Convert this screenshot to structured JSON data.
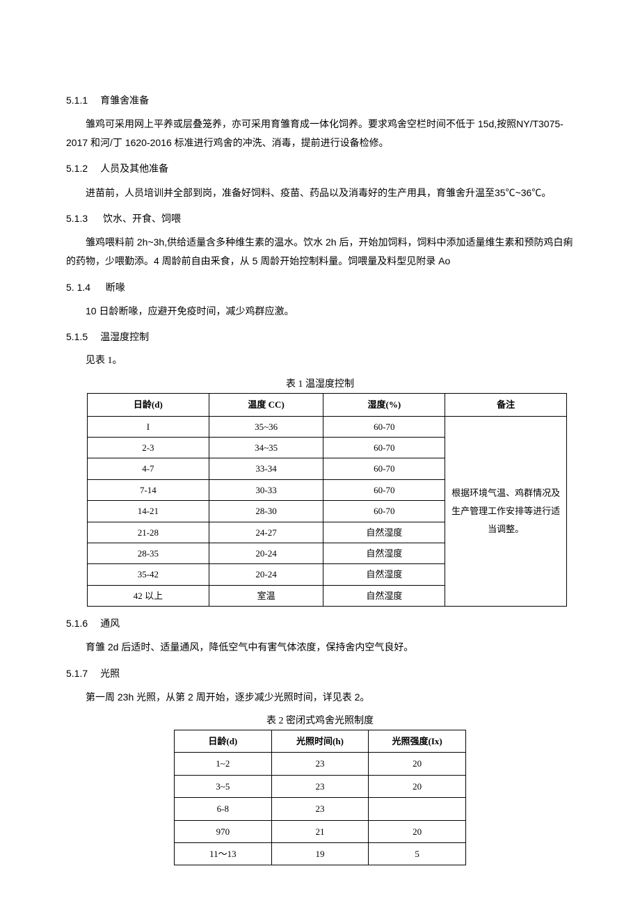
{
  "sections": {
    "s511": {
      "num": "5.1.1",
      "title": "育雏舍准备",
      "para": "雏鸡可采用网上平养或层叠笼养，亦可采用育雏育成一体化饲养。要求鸡舍空栏时间不低于 15d,按照NY/T3075-2017 和河/丁 1620-2016 标准进行鸡舍的冲洗、消毒，提前进行设备检修。"
    },
    "s512": {
      "num": "5.1.2",
      "title": "人员及其他准备",
      "para": "进苗前，人员培训并全部到岗，准备好饲料、疫苗、药品以及消毒好的生产用具，育雏舍升温至35℃~36℃。"
    },
    "s513": {
      "num": "5.1.3",
      "title": "饮水、开食、饲喂",
      "para": "雏鸡喂料前 2h~3h,供给适量含多种维生素的温水。饮水 2h 后，开始加饲料，饲料中添加适量维生素和预防鸡白痢的药物，少喂勤添。4 周龄前自由釆食，从 5 周龄开始控制料量。饲喂量及料型见附录 Ao"
    },
    "s514": {
      "num": "5.  1.4",
      "title": "断喙",
      "para": "10 日龄断喙，应避开免疫时间，减少鸡群应激。"
    },
    "s515": {
      "num": "5.1.5",
      "title": "温湿度控制",
      "para": "见表 1。"
    },
    "s516": {
      "num": "5.1.6",
      "title": "通风",
      "para": "育雏 2d 后适时、适量通风，降低空气中有害气体浓度，保持舍内空气良好。"
    },
    "s517": {
      "num": "5.1.7",
      "title": "光照",
      "para": "第一周 23h 光照，从第 2 周开始，逐步减少光照时间，详见表 2。"
    }
  },
  "table1": {
    "caption": "表 1 温湿度控制",
    "headers": {
      "age": "日龄(d)",
      "temp": "温度 CC)",
      "humid": "湿度(%)",
      "note": "备注"
    },
    "rows": [
      {
        "age": "I",
        "temp": "35~36",
        "humid": "60-70"
      },
      {
        "age": "2-3",
        "temp": "34~35",
        "humid": "60-70"
      },
      {
        "age": "4-7",
        "temp": "33-34",
        "humid": "60-70"
      },
      {
        "age": "7-14",
        "temp": "30-33",
        "humid": "60-70"
      },
      {
        "age": "14-21",
        "temp": "28-30",
        "humid": "60-70"
      },
      {
        "age": "21-28",
        "temp": "24-27",
        "humid": "自然湿度"
      },
      {
        "age": "28-35",
        "temp": "20-24",
        "humid": "自然湿度"
      },
      {
        "age": "35-42",
        "temp": "20-24",
        "humid": "自然湿度"
      },
      {
        "age": "42 以上",
        "temp": "室温",
        "humid": "自然湿度"
      }
    ],
    "note": "根据环境气温、鸡群情况及生产管理工作安排等进行适当调整。"
  },
  "table2": {
    "caption": "表 2 密闭式鸡舍光照制度",
    "headers": {
      "age": "日龄(d)",
      "time": "光照时间(h)",
      "lux": "光照强度(Ix)"
    },
    "rows": [
      {
        "age": "1~2",
        "time": "23",
        "lux": "20"
      },
      {
        "age": "3~5",
        "time": "23",
        "lux": "20"
      },
      {
        "age": "6-8",
        "time": "23",
        "lux": ""
      },
      {
        "age": "970",
        "time": "21",
        "lux": "20"
      },
      {
        "age": "11～13",
        "time": "19",
        "lux": "5"
      }
    ]
  }
}
